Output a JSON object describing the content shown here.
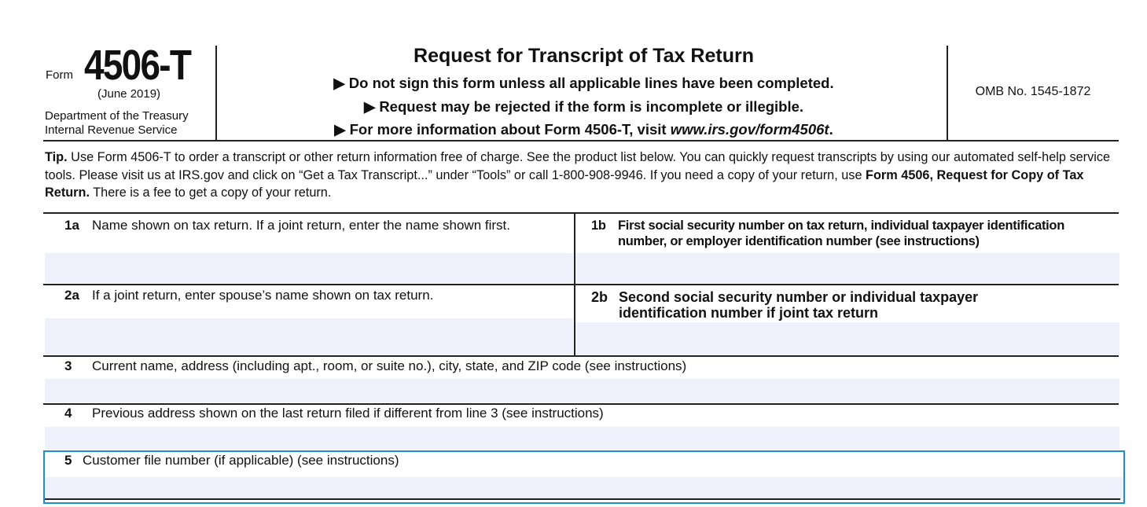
{
  "header": {
    "form_word": "Form",
    "form_number": "4506-T",
    "revision": "(June 2019)",
    "department": "Department of the Treasury",
    "agency": "Internal Revenue Service",
    "title": "Request for Transcript of Tax Return",
    "notes": [
      "▶ Do not sign this form unless all applicable lines have been completed.",
      "▶ Request may be rejected if the form is incomplete or illegible."
    ],
    "info_prefix": "▶ For more information about Form 4506-T, visit ",
    "info_link": "www.irs.gov/form4506t",
    "info_suffix": ".",
    "omb": "OMB No. 1545-1872"
  },
  "tip": {
    "label": "Tip.",
    "text1": " Use Form 4506-T to order a transcript or other return information free of charge. See the product list below. You can quickly request transcripts by using our automated self-help service tools. Please visit us at IRS.gov and click on “Get a Tax Transcript...” under “Tools” or call 1-800-908-9946. If you need a copy of your return, use ",
    "bold": "Form 4506, Request for Copy of Tax Return.",
    "text2": " There is a fee to get a copy of your return."
  },
  "lines": {
    "l1a": {
      "num": "1a",
      "label": "Name shown on tax return. If a joint return, enter the name shown first.",
      "value": ""
    },
    "l1b": {
      "num": "1b",
      "label": "First social security number on tax return, individual taxpayer identification number, or employer identification number (see instructions)",
      "value": ""
    },
    "l2a": {
      "num": "2a",
      "label": "If a joint return, enter spouse’s name shown on tax return.",
      "value": ""
    },
    "l2b": {
      "num": "2b",
      "label": "Second social security number or individual taxpayer identification number if joint tax return",
      "value": ""
    },
    "l3": {
      "num": "3",
      "label": "Current name, address (including apt., room, or suite no.), city, state, and ZIP code (see instructions)",
      "value": ""
    },
    "l4": {
      "num": "4",
      "label": "Previous address shown on the last return filed if different from line 3 (see instructions)",
      "value": ""
    },
    "l5": {
      "num": "5",
      "label": "Customer file number (if applicable) (see instructions)",
      "value": ""
    }
  },
  "colors": {
    "focus_border": "#1a8fd6",
    "field_fill": "#eef0fb"
  }
}
